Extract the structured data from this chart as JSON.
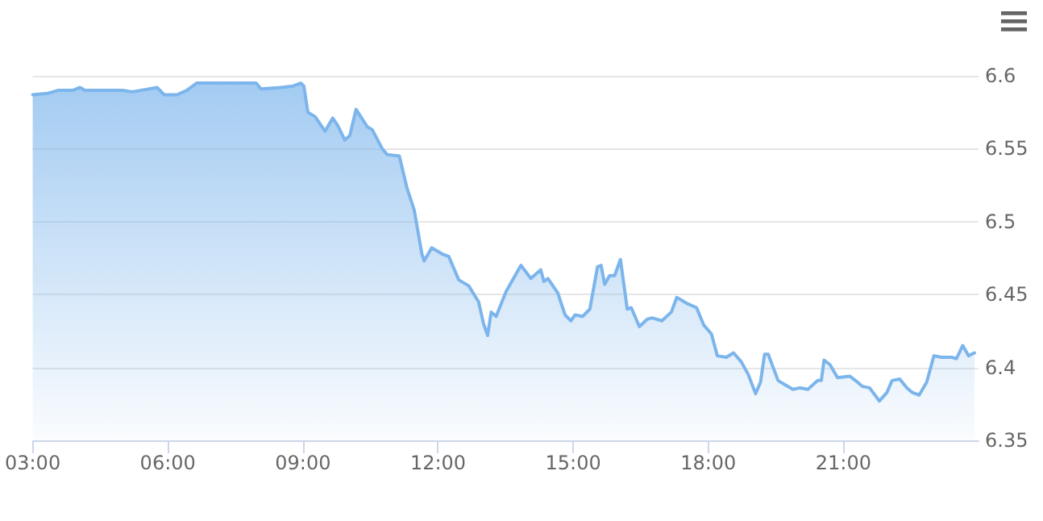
{
  "chart_data": {
    "type": "area",
    "x": [
      3.0,
      3.34,
      3.56,
      3.89,
      4.05,
      4.16,
      4.99,
      5.21,
      5.76,
      5.92,
      6.2,
      6.42,
      6.64,
      7.96,
      8.07,
      8.51,
      8.78,
      8.95,
      9.02,
      9.11,
      9.27,
      9.49,
      9.66,
      9.77,
      9.93,
      10.04,
      10.18,
      10.43,
      10.54,
      10.76,
      10.87,
      11.14,
      11.31,
      11.47,
      11.64,
      11.69,
      11.86,
      12.08,
      12.24,
      12.46,
      12.68,
      12.9,
      13.01,
      13.1,
      13.18,
      13.29,
      13.51,
      13.84,
      14.06,
      14.28,
      14.35,
      14.44,
      14.66,
      14.82,
      14.95,
      15.04,
      15.21,
      15.37,
      15.54,
      15.62,
      15.7,
      15.81,
      15.92,
      16.05,
      16.2,
      16.29,
      16.47,
      16.64,
      16.75,
      16.97,
      17.18,
      17.3,
      17.52,
      17.74,
      17.9,
      18.07,
      18.2,
      18.4,
      18.56,
      18.73,
      18.89,
      19.05,
      19.16,
      19.25,
      19.33,
      19.55,
      19.71,
      19.88,
      20.04,
      20.21,
      20.43,
      20.51,
      20.57,
      20.7,
      20.87,
      21.14,
      21.31,
      21.42,
      21.58,
      21.8,
      21.97,
      22.08,
      22.25,
      22.41,
      22.52,
      22.68,
      22.85,
      23.01,
      23.18,
      23.4,
      23.51,
      23.65,
      23.78,
      23.91
    ],
    "series": [
      {
        "color": "#7cb5ec",
        "values": [
          6.587,
          6.588,
          6.59,
          6.59,
          6.592,
          6.59,
          6.59,
          6.589,
          6.592,
          6.587,
          6.587,
          6.59,
          6.595,
          6.595,
          6.591,
          6.592,
          6.593,
          6.595,
          6.593,
          6.575,
          6.572,
          6.562,
          6.571,
          6.566,
          6.556,
          6.559,
          6.577,
          6.565,
          6.563,
          6.55,
          6.546,
          6.545,
          6.523,
          6.508,
          6.478,
          6.473,
          6.482,
          6.478,
          6.476,
          6.46,
          6.456,
          6.445,
          6.43,
          6.422,
          6.438,
          6.435,
          6.452,
          6.47,
          6.461,
          6.467,
          6.459,
          6.461,
          6.451,
          6.436,
          6.432,
          6.436,
          6.435,
          6.44,
          6.469,
          6.47,
          6.457,
          6.463,
          6.463,
          6.474,
          6.44,
          6.441,
          6.428,
          6.433,
          6.434,
          6.432,
          6.438,
          6.448,
          6.444,
          6.441,
          6.429,
          6.423,
          6.408,
          6.407,
          6.41,
          6.404,
          6.395,
          6.382,
          6.39,
          6.409,
          6.409,
          6.391,
          6.388,
          6.385,
          6.386,
          6.385,
          6.391,
          6.391,
          6.405,
          6.402,
          6.393,
          6.394,
          6.39,
          6.387,
          6.386,
          6.377,
          6.383,
          6.391,
          6.392,
          6.386,
          6.383,
          6.381,
          6.39,
          6.408,
          6.407,
          6.407,
          6.406,
          6.415,
          6.408,
          6.41
        ]
      }
    ],
    "xlim": [
      3,
      24
    ],
    "xticks": [
      {
        "value": 3,
        "label": "03:00"
      },
      {
        "value": 6,
        "label": "06:00"
      },
      {
        "value": 9,
        "label": "09:00"
      },
      {
        "value": 12,
        "label": "12:00"
      },
      {
        "value": 15,
        "label": "15:00"
      },
      {
        "value": 18,
        "label": "18:00"
      },
      {
        "value": 21,
        "label": "21:00"
      }
    ],
    "ylim": [
      6.35,
      6.6
    ],
    "yticks": [
      6.35,
      6.4,
      6.45,
      6.5,
      6.55,
      6.6
    ],
    "grid": "y",
    "marker": "none",
    "line_style": "solid"
  }
}
